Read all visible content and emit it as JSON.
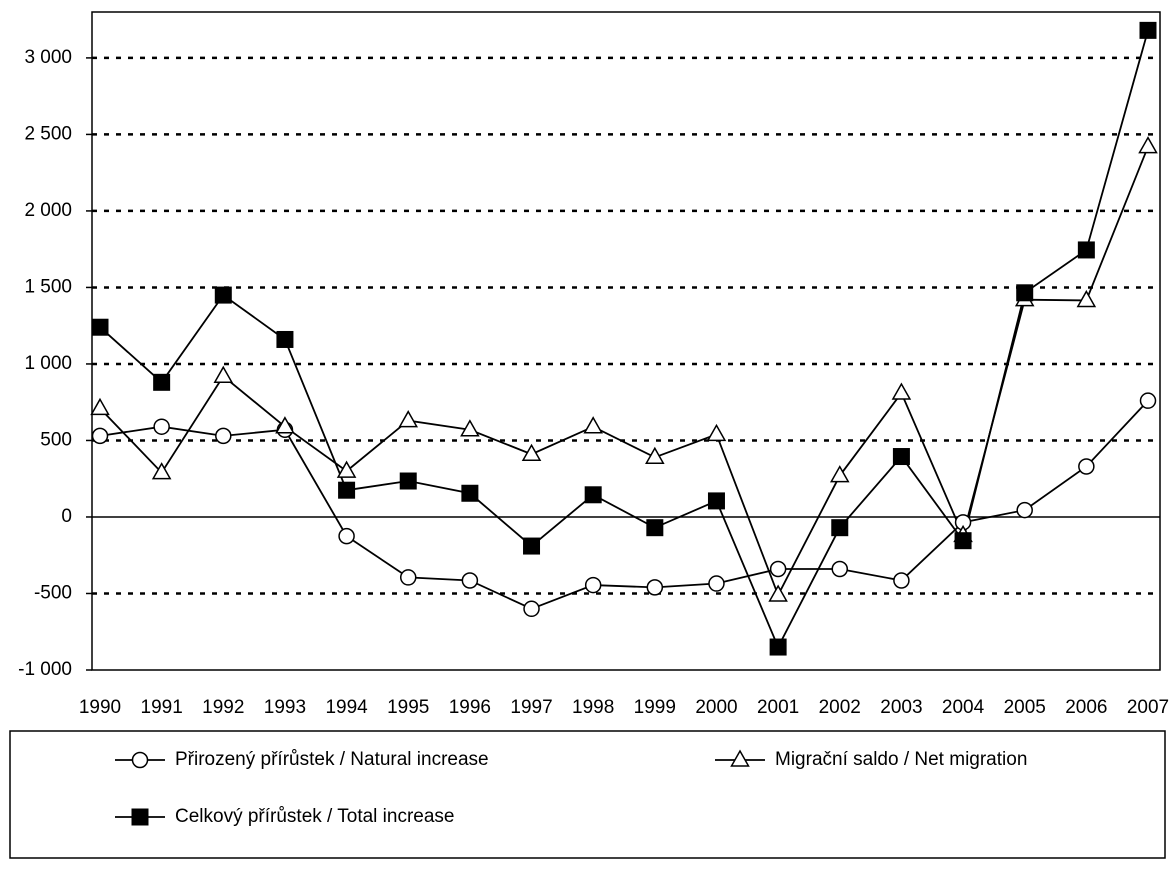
{
  "chart_data": {
    "type": "line",
    "categories": [
      "1990",
      "1991",
      "1992",
      "1993",
      "1994",
      "1995",
      "1996",
      "1997",
      "1998",
      "1999",
      "2000",
      "2001",
      "2002",
      "2003",
      "2004",
      "2005",
      "2006",
      "2007"
    ],
    "series": [
      {
        "name": "Přirozený přírůstek / Natural increase",
        "color": "#000000",
        "marker": "circle",
        "values": [
          530,
          590,
          530,
          570,
          -125,
          -395,
          -415,
          -600,
          -445,
          -460,
          -435,
          -340,
          -340,
          -415,
          -35,
          45,
          330,
          760
        ]
      },
      {
        "name": "Migrační saldo / Net migration",
        "color": "#000000",
        "marker": "triangle",
        "values": [
          710,
          290,
          920,
          590,
          300,
          630,
          570,
          410,
          590,
          390,
          540,
          -510,
          270,
          810,
          -120,
          1420,
          1415,
          2420
        ]
      },
      {
        "name": "Celkový přírůstek / Total increase",
        "color": "#000000",
        "marker": "square",
        "values": [
          1240,
          880,
          1450,
          1160,
          175,
          235,
          155,
          -190,
          145,
          -70,
          105,
          -850,
          -70,
          395,
          -155,
          1465,
          1745,
          3180
        ]
      }
    ],
    "ylim": [
      -1000,
      3300
    ],
    "yticks": [
      {
        "value": -1000,
        "label": "-1 000"
      },
      -500,
      0,
      500,
      {
        "value": 1000,
        "label": "1 000"
      },
      {
        "value": 1500,
        "label": "1 500"
      },
      {
        "value": 2000,
        "label": "2 000"
      },
      {
        "value": 2500,
        "label": "2 500"
      },
      {
        "value": 3000,
        "label": "3 000"
      }
    ],
    "grid": true,
    "legend": "bottom"
  }
}
